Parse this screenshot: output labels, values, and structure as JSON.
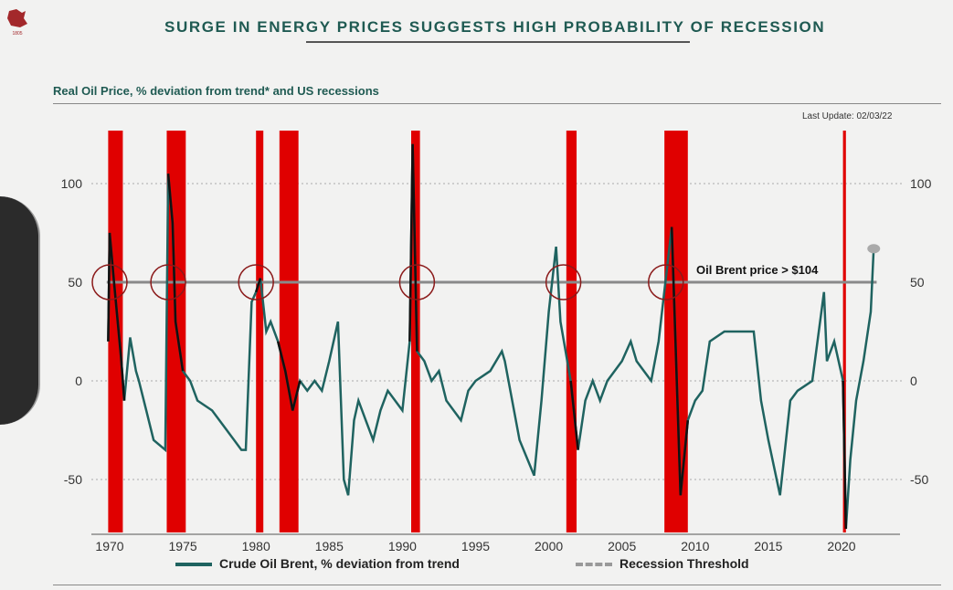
{
  "header": {
    "title": "SURGE IN ENERGY PRICES SUGGESTS HIGH PROBABILITY OF RECESSION",
    "subtitle": "Real Oil Price, % deviation from trend* and US recessions",
    "last_update": "Last Update: 02/03/22",
    "logo_year": "1805"
  },
  "chart_data": {
    "type": "line",
    "title": "Real Oil Price, % deviation from trend* and US recessions",
    "xlabel": "",
    "ylabel": "",
    "xlim": [
      1969.5,
      2023.5
    ],
    "ylim": [
      -77,
      127
    ],
    "x_ticks": [
      1970,
      1975,
      1980,
      1985,
      1990,
      1995,
      2000,
      2005,
      2010,
      2015,
      2020
    ],
    "y_ticks": [
      100,
      50,
      0,
      -50
    ],
    "series": [
      {
        "name": "Crude Oil Brent, % deviation from trend",
        "color": "#1f6360",
        "points": [
          [
            1969.9,
            20
          ],
          [
            1970,
            75
          ],
          [
            1970.3,
            50
          ],
          [
            1970.8,
            10
          ],
          [
            1971,
            -10
          ],
          [
            1971.4,
            22
          ],
          [
            1971.8,
            5
          ],
          [
            1972,
            0
          ],
          [
            1972.5,
            -15
          ],
          [
            1973,
            -30
          ],
          [
            1973.8,
            -35
          ],
          [
            1974,
            105
          ],
          [
            1974.3,
            80
          ],
          [
            1974.5,
            30
          ],
          [
            1975,
            5
          ],
          [
            1975.5,
            0
          ],
          [
            1976,
            -10
          ],
          [
            1977,
            -15
          ],
          [
            1978,
            -25
          ],
          [
            1979,
            -35
          ],
          [
            1979.3,
            -35
          ],
          [
            1979.7,
            40
          ],
          [
            1980,
            45
          ],
          [
            1980.3,
            52
          ],
          [
            1980.7,
            25
          ],
          [
            1981,
            30
          ],
          [
            1981.5,
            20
          ],
          [
            1982,
            5
          ],
          [
            1982.5,
            -15
          ],
          [
            1983,
            0
          ],
          [
            1983.5,
            -5
          ],
          [
            1984,
            0
          ],
          [
            1984.5,
            -5
          ],
          [
            1985,
            10
          ],
          [
            1985.6,
            30
          ],
          [
            1986,
            -50
          ],
          [
            1986.3,
            -58
          ],
          [
            1986.7,
            -20
          ],
          [
            1987,
            -10
          ],
          [
            1987.5,
            -20
          ],
          [
            1988,
            -30
          ],
          [
            1988.5,
            -15
          ],
          [
            1989,
            -5
          ],
          [
            1990,
            -15
          ],
          [
            1990.5,
            20
          ],
          [
            1990.7,
            120
          ],
          [
            1991,
            15
          ],
          [
            1991.5,
            10
          ],
          [
            1992,
            0
          ],
          [
            1992.5,
            5
          ],
          [
            1993,
            -10
          ],
          [
            1994,
            -20
          ],
          [
            1994.5,
            -5
          ],
          [
            1995,
            0
          ],
          [
            1996,
            5
          ],
          [
            1996.8,
            15
          ],
          [
            1997,
            10
          ],
          [
            1998,
            -30
          ],
          [
            1999,
            -48
          ],
          [
            1999.5,
            -10
          ],
          [
            2000,
            35
          ],
          [
            2000.5,
            68
          ],
          [
            2000.8,
            30
          ],
          [
            2001.5,
            0
          ],
          [
            2002,
            -35
          ],
          [
            2002.5,
            -10
          ],
          [
            2003,
            0
          ],
          [
            2003.5,
            -10
          ],
          [
            2004,
            0
          ],
          [
            2005,
            10
          ],
          [
            2005.6,
            20
          ],
          [
            2006,
            10
          ],
          [
            2007,
            0
          ],
          [
            2007.5,
            20
          ],
          [
            2008.4,
            78
          ],
          [
            2008.7,
            10
          ],
          [
            2009,
            -58
          ],
          [
            2009.5,
            -20
          ],
          [
            2010,
            -10
          ],
          [
            2010.5,
            -5
          ],
          [
            2011,
            20
          ],
          [
            2012,
            25
          ],
          [
            2013,
            25
          ],
          [
            2014,
            25
          ],
          [
            2014.5,
            -10
          ],
          [
            2015,
            -30
          ],
          [
            2015.8,
            -58
          ],
          [
            2016.5,
            -10
          ],
          [
            2017,
            -5
          ],
          [
            2018,
            0
          ],
          [
            2018.8,
            45
          ],
          [
            2019,
            10
          ],
          [
            2019.5,
            20
          ],
          [
            2020.1,
            0
          ],
          [
            2020.3,
            -75
          ],
          [
            2020.6,
            -40
          ],
          [
            2021,
            -10
          ],
          [
            2021.5,
            10
          ],
          [
            2022,
            35
          ],
          [
            2022.2,
            67
          ]
        ]
      },
      {
        "name": "Recession Threshold",
        "value": 50,
        "color": "#999999"
      }
    ],
    "recessions": [
      [
        1969.9,
        1970.9
      ],
      [
        1973.9,
        1975.2
      ],
      [
        1980.0,
        1980.5
      ],
      [
        1981.6,
        1982.9
      ],
      [
        1990.6,
        1991.2
      ],
      [
        2001.2,
        2001.9
      ],
      [
        2007.9,
        2009.5
      ],
      [
        2020.1,
        2020.3
      ]
    ],
    "circled_threshold_crossings": [
      1970,
      1974,
      1980,
      1991,
      2001,
      2008
    ],
    "annotation": "Oil Brent price > $104",
    "latest_point": [
      2022.2,
      67
    ],
    "grid": "horizontal dotted",
    "legend": "bottom",
    "legend_entries": [
      "Crude Oil Brent, % deviation from trend",
      "Recession Threshold"
    ]
  }
}
